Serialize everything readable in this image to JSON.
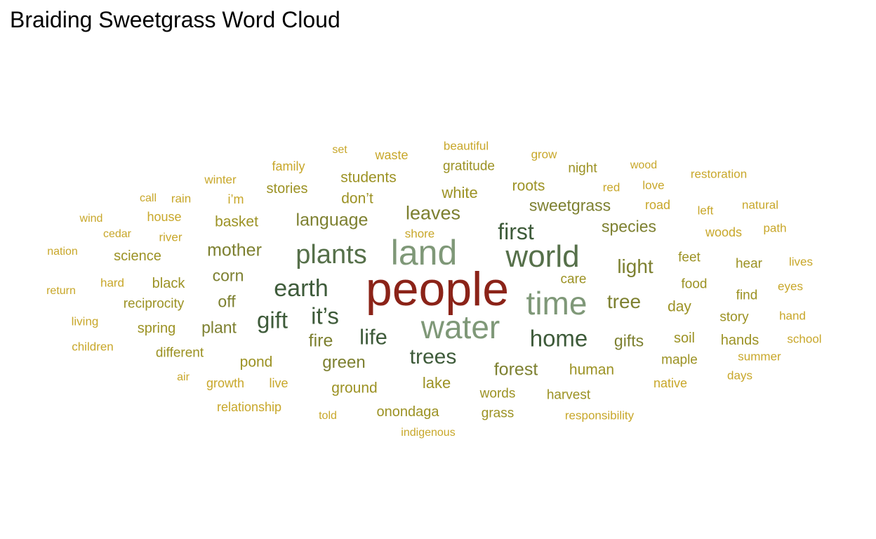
{
  "title": "Braiding Sweetgrass Word Cloud",
  "chart_data": {
    "type": "wordcloud",
    "title": "Braiding Sweetgrass Word Cloud",
    "palette": {
      "highest": "#8b2318",
      "high": "#7f9878",
      "mid_high": "#56704a",
      "mid": "#3e5b3a",
      "mid_low": "#7d8030",
      "low": "#9c9224",
      "lowest": "#c8a72a"
    },
    "words": [
      {
        "text": "people",
        "weight": 100
      },
      {
        "text": "land",
        "weight": 82
      },
      {
        "text": "water",
        "weight": 76
      },
      {
        "text": "time",
        "weight": 75
      },
      {
        "text": "world",
        "weight": 73
      },
      {
        "text": "plants",
        "weight": 63
      },
      {
        "text": "earth",
        "weight": 58
      },
      {
        "text": "it’s",
        "weight": 56
      },
      {
        "text": "gift",
        "weight": 55
      },
      {
        "text": "home",
        "weight": 55
      },
      {
        "text": "first",
        "weight": 54
      },
      {
        "text": "life",
        "weight": 52
      },
      {
        "text": "trees",
        "weight": 51
      },
      {
        "text": "tree",
        "weight": 48
      },
      {
        "text": "light",
        "weight": 48
      },
      {
        "text": "leaves",
        "weight": 47
      },
      {
        "text": "fire",
        "weight": 44
      },
      {
        "text": "mother",
        "weight": 44
      },
      {
        "text": "forest",
        "weight": 43
      },
      {
        "text": "language",
        "weight": 43
      },
      {
        "text": "green",
        "weight": 42
      },
      {
        "text": "gifts",
        "weight": 41
      },
      {
        "text": "corn",
        "weight": 41
      },
      {
        "text": "plant",
        "weight": 40
      },
      {
        "text": "sweetgrass",
        "weight": 40
      },
      {
        "text": "species",
        "weight": 40
      },
      {
        "text": "off",
        "weight": 40
      },
      {
        "text": "white",
        "weight": 39
      },
      {
        "text": "lake",
        "weight": 39
      },
      {
        "text": "human",
        "weight": 38
      },
      {
        "text": "pond",
        "weight": 38
      },
      {
        "text": "day",
        "weight": 38
      },
      {
        "text": "ground",
        "weight": 37
      },
      {
        "text": "roots",
        "weight": 37
      },
      {
        "text": "basket",
        "weight": 37
      },
      {
        "text": "students",
        "weight": 37
      },
      {
        "text": "don’t",
        "weight": 37
      },
      {
        "text": "black",
        "weight": 36
      },
      {
        "text": "stories",
        "weight": 36
      },
      {
        "text": "spring",
        "weight": 36
      },
      {
        "text": "soil",
        "weight": 36
      },
      {
        "text": "hands",
        "weight": 36
      },
      {
        "text": "science",
        "weight": 36
      },
      {
        "text": "onondaga",
        "weight": 36
      },
      {
        "text": "story",
        "weight": 35
      },
      {
        "text": "reciprocity",
        "weight": 35
      },
      {
        "text": "feet",
        "weight": 35
      },
      {
        "text": "food",
        "weight": 35
      },
      {
        "text": "harvest",
        "weight": 35
      },
      {
        "text": "hear",
        "weight": 35
      },
      {
        "text": "find",
        "weight": 35
      },
      {
        "text": "words",
        "weight": 34
      },
      {
        "text": "gratitude",
        "weight": 34
      },
      {
        "text": "night",
        "weight": 34
      },
      {
        "text": "care",
        "weight": 34
      },
      {
        "text": "maple",
        "weight": 34
      },
      {
        "text": "grass",
        "weight": 34
      },
      {
        "text": "different",
        "weight": 34
      },
      {
        "text": "family",
        "weight": 33
      },
      {
        "text": "house",
        "weight": 33
      },
      {
        "text": "woods",
        "weight": 33
      },
      {
        "text": "growth",
        "weight": 33
      },
      {
        "text": "live",
        "weight": 33
      },
      {
        "text": "i’m",
        "weight": 33
      },
      {
        "text": "waste",
        "weight": 33
      },
      {
        "text": "relationship",
        "weight": 33
      },
      {
        "text": "native",
        "weight": 33
      },
      {
        "text": "road",
        "weight": 33
      },
      {
        "text": "red",
        "weight": 32
      },
      {
        "text": "river",
        "weight": 32
      },
      {
        "text": "beautiful",
        "weight": 32
      },
      {
        "text": "responsibility",
        "weight": 32
      },
      {
        "text": "rain",
        "weight": 32
      },
      {
        "text": "hard",
        "weight": 32
      },
      {
        "text": "winter",
        "weight": 32
      },
      {
        "text": "restoration",
        "weight": 32
      },
      {
        "text": "left",
        "weight": 32
      },
      {
        "text": "love",
        "weight": 32
      },
      {
        "text": "living",
        "weight": 31
      },
      {
        "text": "children",
        "weight": 31
      },
      {
        "text": "natural",
        "weight": 31
      },
      {
        "text": "path",
        "weight": 31
      },
      {
        "text": "eyes",
        "weight": 31
      },
      {
        "text": "lives",
        "weight": 31
      },
      {
        "text": "hand",
        "weight": 31
      },
      {
        "text": "summer",
        "weight": 31
      },
      {
        "text": "shore",
        "weight": 31
      },
      {
        "text": "school",
        "weight": 31
      },
      {
        "text": "days",
        "weight": 31
      },
      {
        "text": "grow",
        "weight": 31
      },
      {
        "text": "wood",
        "weight": 30
      },
      {
        "text": "cedar",
        "weight": 30
      },
      {
        "text": "indigenous",
        "weight": 30
      },
      {
        "text": "told",
        "weight": 30
      },
      {
        "text": "set",
        "weight": 30
      },
      {
        "text": "call",
        "weight": 30
      },
      {
        "text": "wind",
        "weight": 30
      },
      {
        "text": "nation",
        "weight": 30
      },
      {
        "text": "return",
        "weight": 30
      },
      {
        "text": "air",
        "weight": 30
      }
    ]
  }
}
